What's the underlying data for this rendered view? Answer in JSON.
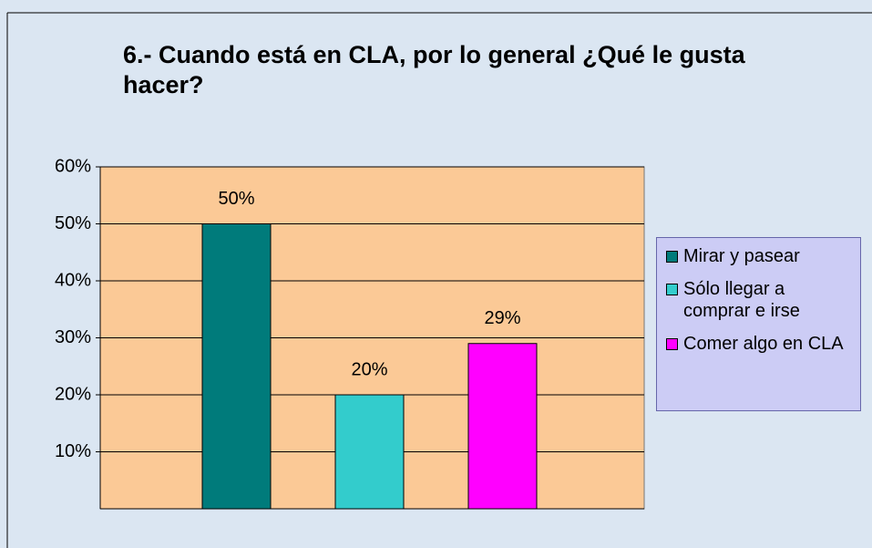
{
  "chart_data": {
    "type": "bar",
    "title": "6.- Cuando está en CLA, por lo general ¿Qué le gusta hacer?",
    "categories": [
      "Mirar y pasear",
      "Sólo llegar a comprar e irse",
      "Comer algo en CLA"
    ],
    "values": [
      50,
      20,
      29
    ],
    "value_labels": [
      "50%",
      "20%",
      "29%"
    ],
    "colors": [
      "#007b7b",
      "#33cccc",
      "#ff00ff"
    ],
    "ylim": [
      0,
      60
    ],
    "yticks": [
      {
        "value": 10,
        "label": "10%"
      },
      {
        "value": 20,
        "label": "20%"
      },
      {
        "value": 30,
        "label": "30%"
      },
      {
        "value": 40,
        "label": "40%"
      },
      {
        "value": 50,
        "label": "50%"
      },
      {
        "value": 60,
        "label": "60%"
      }
    ],
    "grid": true,
    "legend": "right"
  }
}
